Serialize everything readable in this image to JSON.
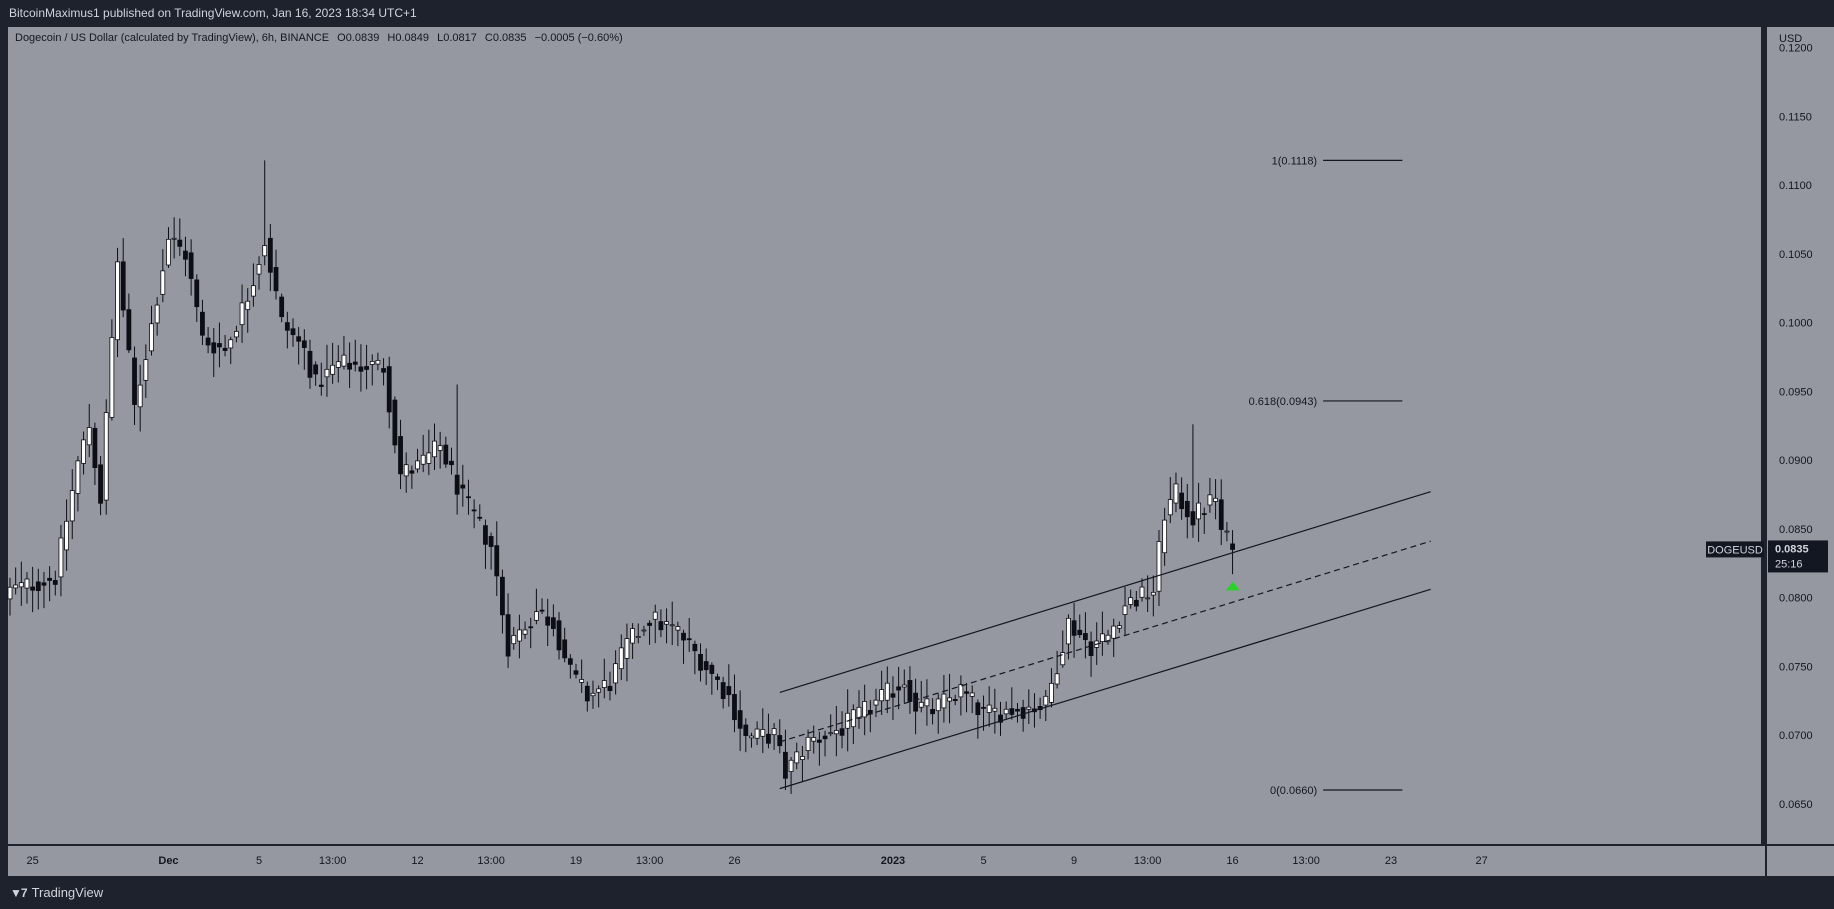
{
  "header": {
    "publish_text": "BitcoinMaximus1 published on TradingView.com, Jan 16, 2023 18:34 UTC+1"
  },
  "legend": {
    "symbol_text": "Dogecoin / US Dollar (calculated by TradingView), 6h, BINANCE",
    "o_label": "O",
    "o_value": "0.0839",
    "h_label": "H",
    "h_value": "0.0849",
    "l_label": "L",
    "l_value": "0.0817",
    "c_label": "C",
    "c_value": "0.0835",
    "change": "−0.0005 (−0.60%)"
  },
  "footer": {
    "brand_label": "TradingView",
    "logo_icon": "tradingview-logo-icon"
  },
  "colors": {
    "pane_bg": "#9598a1",
    "frame_bg": "#1e222d",
    "candle_up": "#ffffff",
    "candle_down": "#0c0e15",
    "wick": "#0c0e15",
    "arrow": "#2bd12b",
    "scale_text": "#d1d4dc",
    "badge_bg": "#131722"
  },
  "chart_data": {
    "type": "candlestick",
    "symbol": "DOGEUSD",
    "currency": "USD",
    "interval": "6h",
    "exchange": "BINANCE",
    "y_range": [
      0.062,
      0.1215
    ],
    "y_ticks": [
      {
        "value": 0.12,
        "label": "0.1200"
      },
      {
        "value": 0.115,
        "label": "0.1150"
      },
      {
        "value": 0.11,
        "label": "0.1100"
      },
      {
        "value": 0.105,
        "label": "0.1050"
      },
      {
        "value": 0.1,
        "label": "0.1000"
      },
      {
        "value": 0.095,
        "label": "0.0950"
      },
      {
        "value": 0.09,
        "label": "0.0900"
      },
      {
        "value": 0.085,
        "label": "0.0850"
      },
      {
        "value": 0.08,
        "label": "0.0800"
      },
      {
        "value": 0.075,
        "label": "0.0750"
      },
      {
        "value": 0.07,
        "label": "0.0700"
      },
      {
        "value": 0.065,
        "label": "0.0650"
      }
    ],
    "x_ticks": [
      {
        "label": "25",
        "bold": false,
        "bar": 4
      },
      {
        "label": "Dec",
        "bold": true,
        "bar": 28
      },
      {
        "label": "5",
        "bold": false,
        "bar": 44
      },
      {
        "label": "13:00",
        "bold": false,
        "bar": 57
      },
      {
        "label": "12",
        "bold": false,
        "bar": 72
      },
      {
        "label": "13:00",
        "bold": false,
        "bar": 85
      },
      {
        "label": "19",
        "bold": false,
        "bar": 100
      },
      {
        "label": "13:00",
        "bold": false,
        "bar": 113
      },
      {
        "label": "26",
        "bold": false,
        "bar": 128
      },
      {
        "label": "2023",
        "bold": true,
        "bar": 156
      },
      {
        "label": "5",
        "bold": false,
        "bar": 172
      },
      {
        "label": "9",
        "bold": false,
        "bar": 188
      },
      {
        "label": "13:00",
        "bold": false,
        "bar": 201
      },
      {
        "label": "16",
        "bold": false,
        "bar": 216
      },
      {
        "label": "13:00",
        "bold": false,
        "bar": 229
      },
      {
        "label": "23",
        "bold": false,
        "bar": 244
      },
      {
        "label": "27",
        "bold": false,
        "bar": 260
      }
    ],
    "anchors": [
      {
        "bar": 0,
        "price": 0.0805
      },
      {
        "bar": 8,
        "price": 0.0815
      },
      {
        "bar": 12,
        "price": 0.0898
      },
      {
        "bar": 14,
        "price": 0.0925
      },
      {
        "bar": 16,
        "price": 0.0872
      },
      {
        "bar": 19,
        "price": 0.1045
      },
      {
        "bar": 22,
        "price": 0.0938
      },
      {
        "bar": 25,
        "price": 0.0998
      },
      {
        "bar": 28,
        "price": 0.1062
      },
      {
        "bar": 31,
        "price": 0.105
      },
      {
        "bar": 34,
        "price": 0.0988
      },
      {
        "bar": 38,
        "price": 0.098
      },
      {
        "bar": 42,
        "price": 0.102
      },
      {
        "bar": 45,
        "price": 0.106
      },
      {
        "bar": 48,
        "price": 0.1
      },
      {
        "bar": 52,
        "price": 0.098
      },
      {
        "bar": 54,
        "price": 0.0955
      },
      {
        "bar": 58,
        "price": 0.097
      },
      {
        "bar": 66,
        "price": 0.0968
      },
      {
        "bar": 69,
        "price": 0.089
      },
      {
        "bar": 72,
        "price": 0.0895
      },
      {
        "bar": 76,
        "price": 0.091
      },
      {
        "bar": 80,
        "price": 0.0872
      },
      {
        "bar": 85,
        "price": 0.0838
      },
      {
        "bar": 88,
        "price": 0.0765
      },
      {
        "bar": 93,
        "price": 0.079
      },
      {
        "bar": 96,
        "price": 0.0782
      },
      {
        "bar": 99,
        "price": 0.0745
      },
      {
        "bar": 102,
        "price": 0.0728
      },
      {
        "bar": 106,
        "price": 0.0738
      },
      {
        "bar": 109,
        "price": 0.0765
      },
      {
        "bar": 113,
        "price": 0.0785
      },
      {
        "bar": 118,
        "price": 0.0775
      },
      {
        "bar": 122,
        "price": 0.0755
      },
      {
        "bar": 127,
        "price": 0.0728
      },
      {
        "bar": 130,
        "price": 0.0698
      },
      {
        "bar": 135,
        "price": 0.07
      },
      {
        "bar": 137,
        "price": 0.0672
      },
      {
        "bar": 141,
        "price": 0.0695
      },
      {
        "bar": 147,
        "price": 0.0705
      },
      {
        "bar": 152,
        "price": 0.072
      },
      {
        "bar": 158,
        "price": 0.074
      },
      {
        "bar": 160,
        "price": 0.0722
      },
      {
        "bar": 163,
        "price": 0.0718
      },
      {
        "bar": 168,
        "price": 0.0732
      },
      {
        "bar": 172,
        "price": 0.0715
      },
      {
        "bar": 176,
        "price": 0.0718
      },
      {
        "bar": 183,
        "price": 0.0722
      },
      {
        "bar": 187,
        "price": 0.0782
      },
      {
        "bar": 191,
        "price": 0.0765
      },
      {
        "bar": 194,
        "price": 0.0772
      },
      {
        "bar": 197,
        "price": 0.0795
      },
      {
        "bar": 202,
        "price": 0.0805
      },
      {
        "bar": 204,
        "price": 0.0862
      },
      {
        "bar": 206,
        "price": 0.0875
      },
      {
        "bar": 209,
        "price": 0.0858
      },
      {
        "bar": 213,
        "price": 0.0873
      },
      {
        "bar": 214,
        "price": 0.0848
      },
      {
        "bar": 216,
        "price": 0.0835
      }
    ],
    "channel": {
      "upper": {
        "start_bar": 136,
        "start_price": 0.0731,
        "end_bar": 251,
        "end_price": 0.0877
      },
      "middle": {
        "start_bar": 136,
        "start_price": 0.0695,
        "end_bar": 251,
        "end_price": 0.0841
      },
      "lower": {
        "start_bar": 136,
        "start_price": 0.0661,
        "end_bar": 251,
        "end_price": 0.0806
      }
    },
    "fibonacci": [
      {
        "level": 1,
        "price": 0.1118,
        "label": "1(0.1118)"
      },
      {
        "level": 0.618,
        "price": 0.0943,
        "label": "0.618(0.0943)"
      },
      {
        "level": 0,
        "price": 0.066,
        "label": "0(0.0660)"
      }
    ],
    "fib_x_bars": [
      232,
      246
    ],
    "marker": {
      "type": "arrow-up",
      "bar": 216,
      "price": 0.0808
    },
    "last_price": {
      "label": "DOGEUSD",
      "value": "0.0835",
      "price": 0.0835,
      "countdown": "25:16"
    }
  }
}
